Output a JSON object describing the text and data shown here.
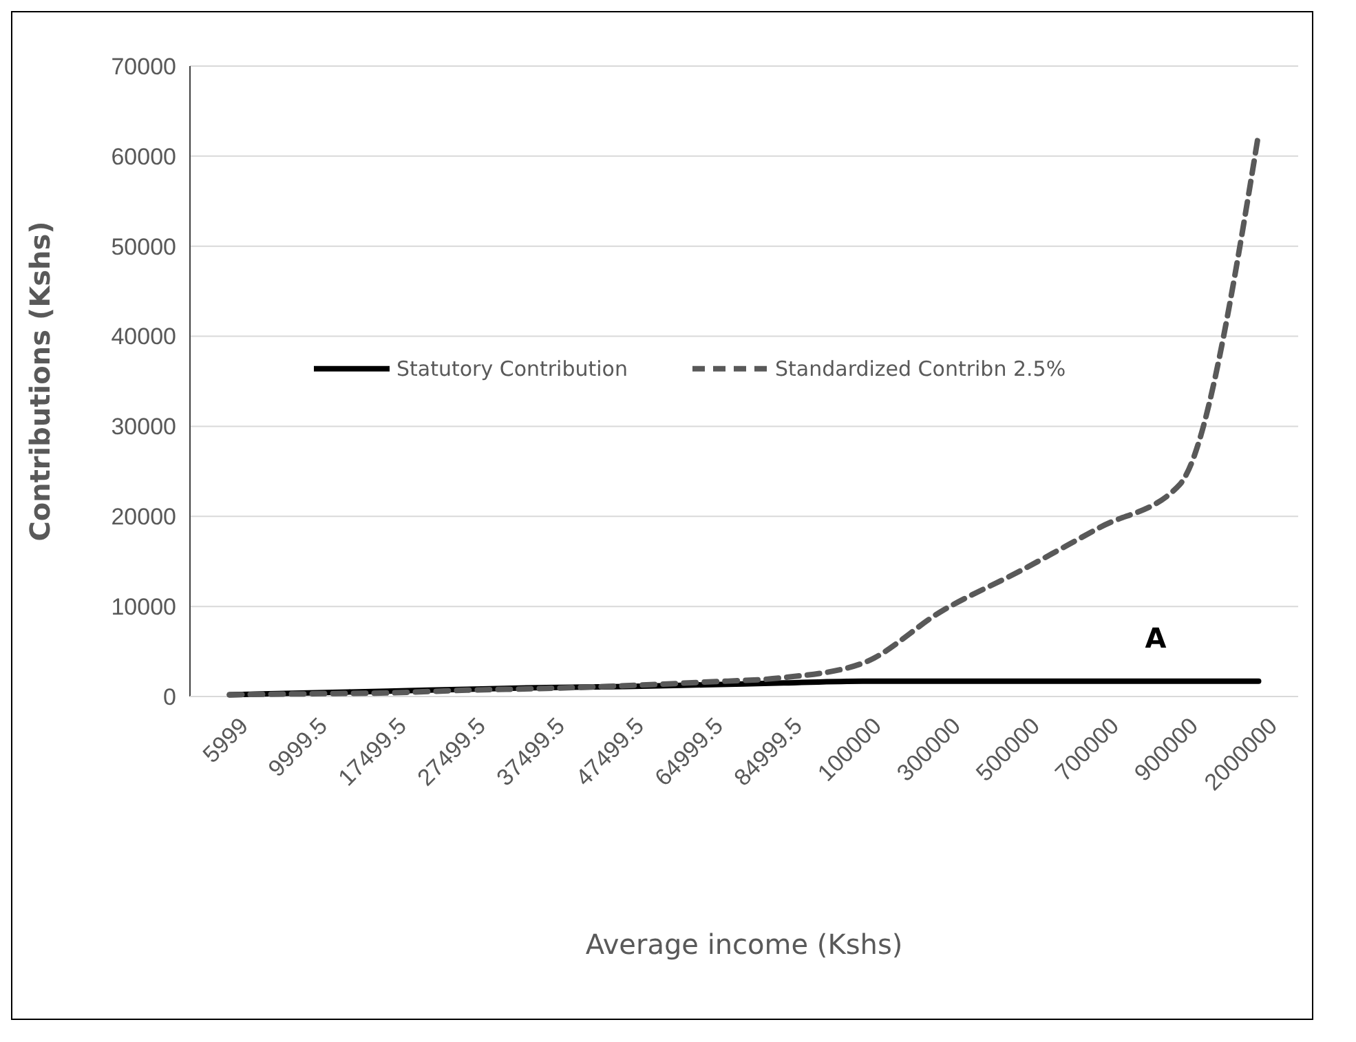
{
  "chart_data": {
    "type": "line",
    "xlabel": "Average income (Kshs)",
    "ylabel": "Contributions (Kshs)",
    "categories": [
      "5999",
      "9999.5",
      "17499.5",
      "27499.5",
      "37499.5",
      "47499.5",
      "64999.5",
      "84999.5",
      "100000",
      "300000",
      "500000",
      "700000",
      "900000",
      "2000000"
    ],
    "series": [
      {
        "name": "Statutory Contribution",
        "color": "#000000",
        "line_style": "solid",
        "values": [
          200,
          400,
          600,
          800,
          1000,
          1100,
          1300,
          1500,
          1700,
          1700,
          1700,
          1700,
          1700,
          1700
        ]
      },
      {
        "name": "Standardized Contribn 2.5%",
        "color": "#595959",
        "line_style": "dashed",
        "values": [
          200,
          300,
          400,
          700,
          900,
          1200,
          1600,
          2100,
          3700,
          9500,
          14000,
          18800,
          23500,
          62500
        ]
      }
    ],
    "ylim": [
      0,
      70000
    ],
    "yticks": [
      0,
      10000,
      20000,
      30000,
      40000,
      50000,
      60000,
      70000
    ],
    "grid": "y",
    "legend": "left",
    "marker": "none",
    "annotations": [
      "A"
    ]
  }
}
